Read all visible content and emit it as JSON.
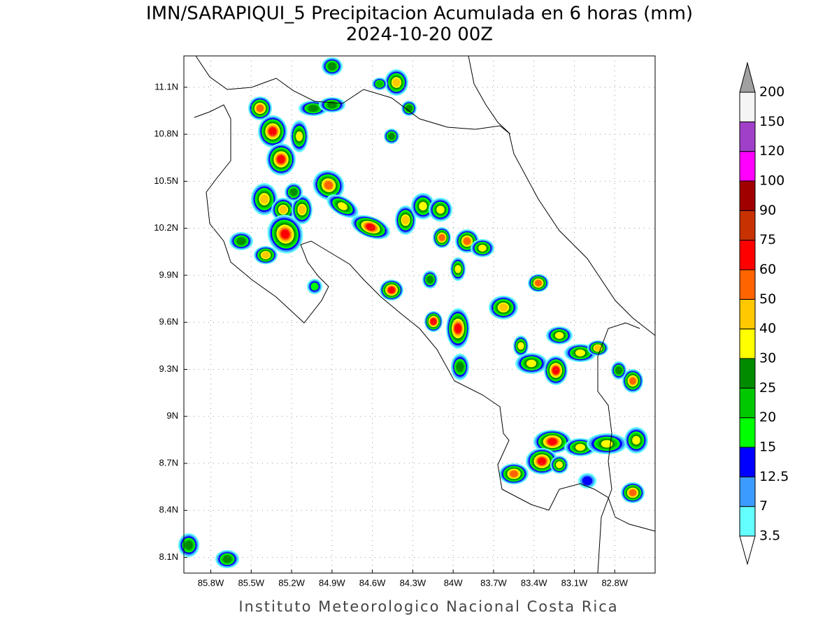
{
  "title": "IMN/SARAPIQUI_5 Precipitacion Acumulada en 6 horas (mm)",
  "subtitle": "2024-10-20 00Z",
  "footer": "Instituto Meteorologico Nacional Costa Rica",
  "map": {
    "xlim": [
      -86,
      -82.5
    ],
    "ylim": [
      8,
      11.3
    ],
    "grid": true,
    "xticks": [
      {
        "value": -85.8,
        "label": "85.8W"
      },
      {
        "value": -85.5,
        "label": "85.5W"
      },
      {
        "value": -85.2,
        "label": "85.2W"
      },
      {
        "value": -84.9,
        "label": "84.9W"
      },
      {
        "value": -84.6,
        "label": "84.6W"
      },
      {
        "value": -84.3,
        "label": "84.3W"
      },
      {
        "value": -84,
        "label": "84W"
      },
      {
        "value": -83.7,
        "label": "83.7W"
      },
      {
        "value": -83.4,
        "label": "83.4W"
      },
      {
        "value": -83.1,
        "label": "83.1W"
      },
      {
        "value": -82.8,
        "label": "82.8W"
      }
    ],
    "yticks": [
      {
        "value": 8.1,
        "label": "8.1N"
      },
      {
        "value": 8.4,
        "label": "8.4N"
      },
      {
        "value": 8.7,
        "label": "8.7N"
      },
      {
        "value": 9,
        "label": "9N"
      },
      {
        "value": 9.3,
        "label": "9.3N"
      },
      {
        "value": 9.6,
        "label": "9.6N"
      },
      {
        "value": 9.9,
        "label": "9.9N"
      },
      {
        "value": 10.2,
        "label": "10.2N"
      },
      {
        "value": 10.5,
        "label": "10.5N"
      },
      {
        "value": 10.8,
        "label": "10.8N"
      },
      {
        "value": 11.1,
        "label": "11.1N"
      }
    ]
  },
  "colorbar": {
    "levels": [
      3.5,
      7,
      12.5,
      15,
      20,
      25,
      30,
      40,
      50,
      60,
      75,
      90,
      100,
      120,
      150,
      200
    ],
    "colors": [
      "#ffffff",
      "#64ffff",
      "#3c9bff",
      "#0000ff",
      "#00ff00",
      "#00c800",
      "#008c00",
      "#ffff00",
      "#ffc800",
      "#ff6400",
      "#ff0000",
      "#c83200",
      "#a00000",
      "#ff00ff",
      "#a040c8",
      "#f5f5f5",
      "#a0a0a0"
    ]
  }
}
